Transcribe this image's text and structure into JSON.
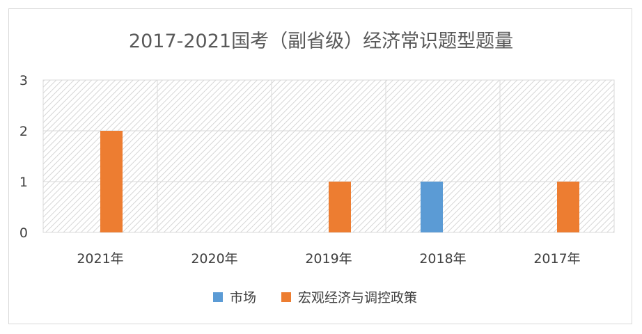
{
  "chart_data": {
    "type": "bar",
    "title": "2017-2021国考（副省级）经济常识题型题量",
    "categories": [
      "2021年",
      "2020年",
      "2019年",
      "2018年",
      "2017年"
    ],
    "series": [
      {
        "name": "市场",
        "values": [
          0,
          0,
          0,
          1,
          0
        ],
        "color": "#5b9bd5"
      },
      {
        "name": "宏观经济与调控政策",
        "values": [
          2,
          0,
          1,
          0,
          1
        ],
        "color": "#ed7d31"
      }
    ],
    "y_ticks": [
      "0",
      "1",
      "2",
      "3"
    ],
    "ylim": [
      0,
      3
    ],
    "grid": true,
    "legend_position": "bottom"
  }
}
